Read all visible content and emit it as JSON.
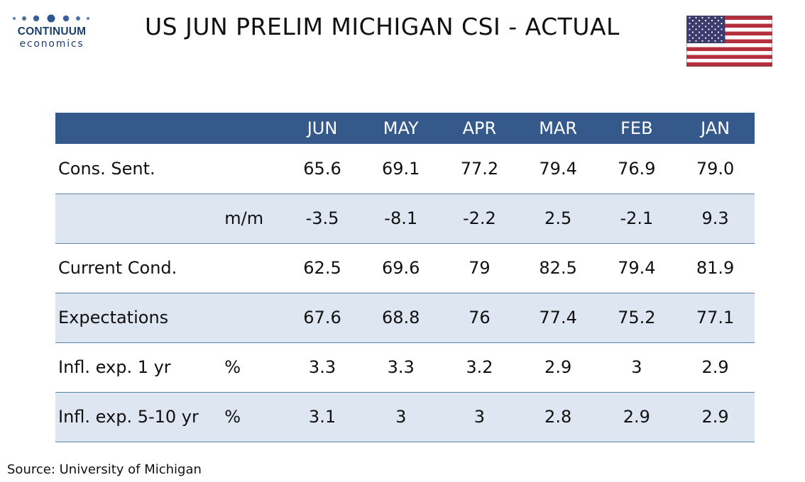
{
  "logo": {
    "name": "CONTINUUM",
    "sub": "economics"
  },
  "title": "US JUN PRELIM MICHIGAN CSI - ACTUAL",
  "colors": {
    "header_bg": "#36598b",
    "row_shade": "#dde6f1",
    "logo_blue": "#1d3f6b"
  },
  "icons": {
    "flag": "us-flag-icon"
  },
  "chart_data": {
    "type": "table",
    "columns": [
      "JUN",
      "MAY",
      "APR",
      "MAR",
      "FEB",
      "JAN"
    ],
    "rows": [
      {
        "label": "Cons. Sent.",
        "unit": "",
        "values": [
          "65.6",
          "69.1",
          "77.2",
          "79.4",
          "76.9",
          "79.0"
        ]
      },
      {
        "label": "",
        "unit": "m/m",
        "values": [
          "-3.5",
          "-8.1",
          "-2.2",
          "2.5",
          "-2.1",
          "9.3"
        ]
      },
      {
        "label": "Current Cond.",
        "unit": "",
        "values": [
          "62.5",
          "69.6",
          "79",
          "82.5",
          "79.4",
          "81.9"
        ]
      },
      {
        "label": "Expectations",
        "unit": "",
        "values": [
          "67.6",
          "68.8",
          "76",
          "77.4",
          "75.2",
          "77.1"
        ]
      },
      {
        "label": "Infl. exp. 1 yr",
        "unit": "%",
        "values": [
          "3.3",
          "3.3",
          "3.2",
          "2.9",
          "3",
          "2.9"
        ]
      },
      {
        "label": "Infl. exp. 5-10 yr",
        "unit": "%",
        "values": [
          "3.1",
          "3",
          "3",
          "2.8",
          "2.9",
          "2.9"
        ]
      }
    ]
  },
  "source": "Source: University of Michigan"
}
